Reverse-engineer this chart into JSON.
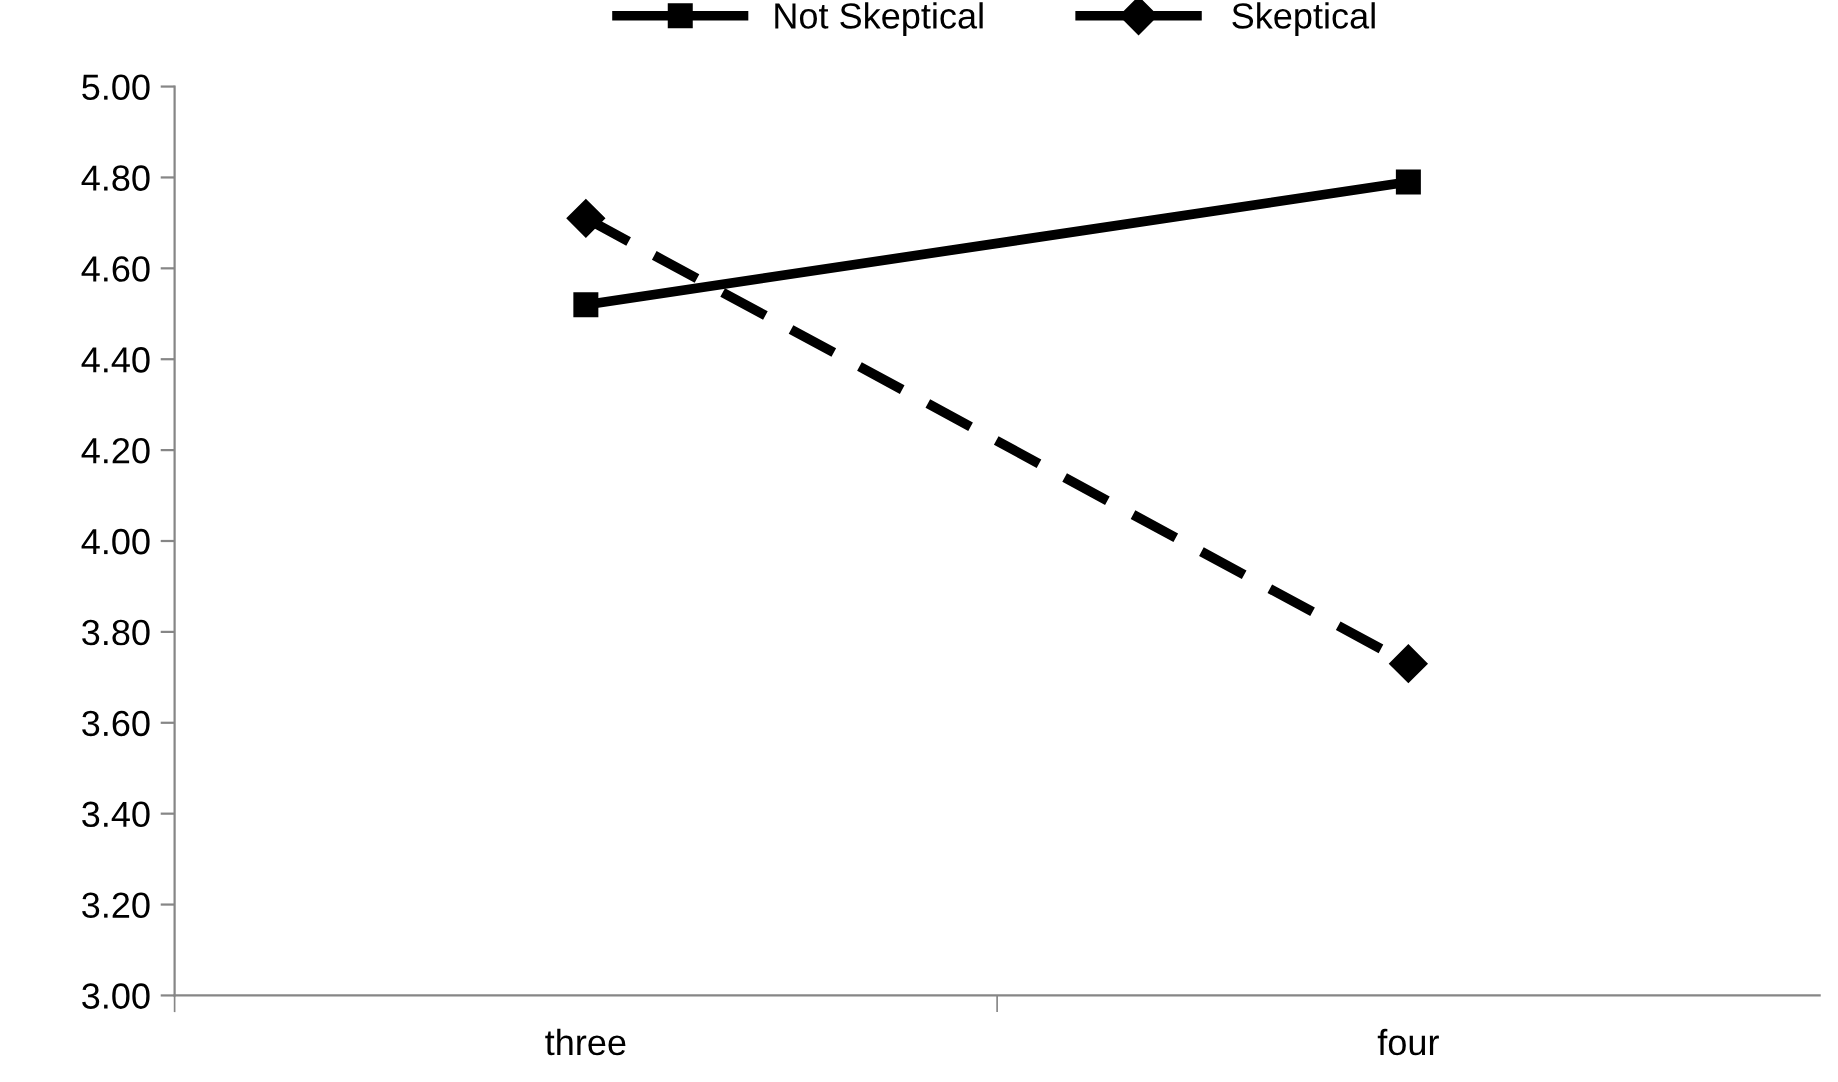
{
  "chart_data": {
    "type": "line",
    "categories": [
      "three",
      "four"
    ],
    "series": [
      {
        "name": "Not Skeptical",
        "color": "#000000",
        "values": [
          4.52,
          4.79
        ],
        "marker": "square",
        "line_style": "solid"
      },
      {
        "name": "Skeptical",
        "color": "#000000",
        "values": [
          4.71,
          3.73
        ],
        "marker": "diamond",
        "line_style": "dashed"
      }
    ],
    "ylim": [
      3.0,
      5.0
    ],
    "yticks": [
      {
        "value": 3.0,
        "label": "3.00"
      },
      {
        "value": 3.2,
        "label": "3.20"
      },
      {
        "value": 3.4,
        "label": "3.40"
      },
      {
        "value": 3.6,
        "label": "3.60"
      },
      {
        "value": 3.8,
        "label": "3.80"
      },
      {
        "value": 4.0,
        "label": "4.00"
      },
      {
        "value": 4.2,
        "label": "4.20"
      },
      {
        "value": 4.4,
        "label": "4.40"
      },
      {
        "value": 4.6,
        "label": "4.60"
      },
      {
        "value": 4.8,
        "label": "4.80"
      },
      {
        "value": 5.0,
        "label": "5.00"
      }
    ],
    "grid": false,
    "legend": "top"
  }
}
